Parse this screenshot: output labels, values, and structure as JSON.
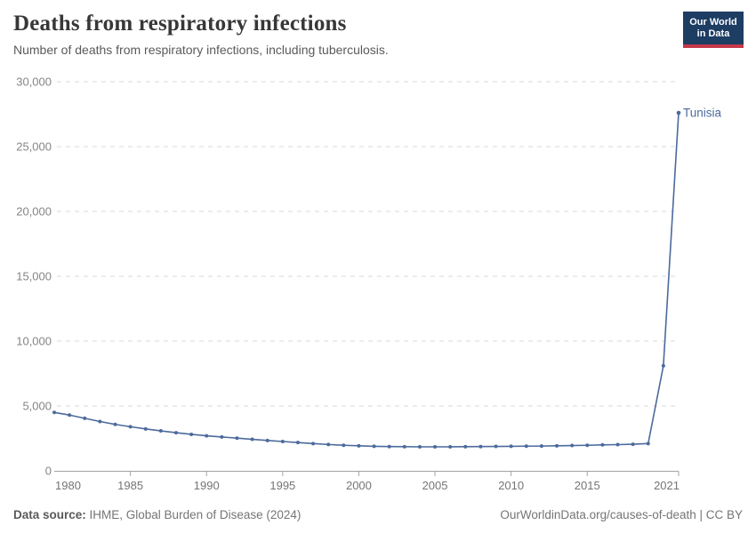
{
  "header": {
    "title": "Deaths from respiratory infections",
    "subtitle": "Number of deaths from respiratory infections, including tuberculosis."
  },
  "logo": {
    "line1": "Our World",
    "line2": "in Data"
  },
  "chart_data": {
    "type": "line",
    "title": "Deaths from respiratory infections",
    "xlabel": "",
    "ylabel": "",
    "xlim": [
      1980,
      2021
    ],
    "ylim": [
      0,
      30000
    ],
    "grid": "horizontal-dashed",
    "legend_position": "end-of-line-label",
    "y_ticks": [
      0,
      5000,
      10000,
      15000,
      20000,
      25000,
      30000
    ],
    "x_tick_years": [
      1985,
      1990,
      1995,
      2000,
      2005,
      2010,
      2015,
      2021
    ],
    "x_first_label": 1980,
    "x": [
      1980,
      1981,
      1982,
      1983,
      1984,
      1985,
      1986,
      1987,
      1988,
      1989,
      1990,
      1991,
      1992,
      1993,
      1994,
      1995,
      1996,
      1997,
      1998,
      1999,
      2000,
      2001,
      2002,
      2003,
      2004,
      2005,
      2006,
      2007,
      2008,
      2009,
      2010,
      2011,
      2012,
      2013,
      2014,
      2015,
      2016,
      2017,
      2018,
      2019,
      2020,
      2021
    ],
    "series": [
      {
        "name": "Tunisia",
        "color": "#4C6A9C",
        "values": [
          4500,
          4300,
          4050,
          3800,
          3580,
          3400,
          3230,
          3080,
          2940,
          2810,
          2700,
          2610,
          2520,
          2430,
          2340,
          2260,
          2180,
          2100,
          2030,
          1970,
          1930,
          1890,
          1870,
          1860,
          1850,
          1850,
          1850,
          1860,
          1870,
          1880,
          1890,
          1900,
          1910,
          1930,
          1950,
          1970,
          2000,
          2020,
          2050,
          2100,
          8100,
          27600
        ]
      }
    ],
    "end_label": "Tunisia"
  },
  "footer": {
    "source_label": "Data source:",
    "source_text": " IHME, Global Burden of Disease (2024)",
    "attribution": "OurWorldinData.org/causes-of-death | CC BY"
  },
  "colors": {
    "line": "#4C6A9C",
    "grid": "#dadada",
    "axis": "#a3a3a3",
    "y_tick_label": "#858585",
    "x_tick_label": "#757575",
    "end_label": "#4C6A9C",
    "logo_bg": "#1d3d63",
    "logo_bar": "#c5384a"
  }
}
